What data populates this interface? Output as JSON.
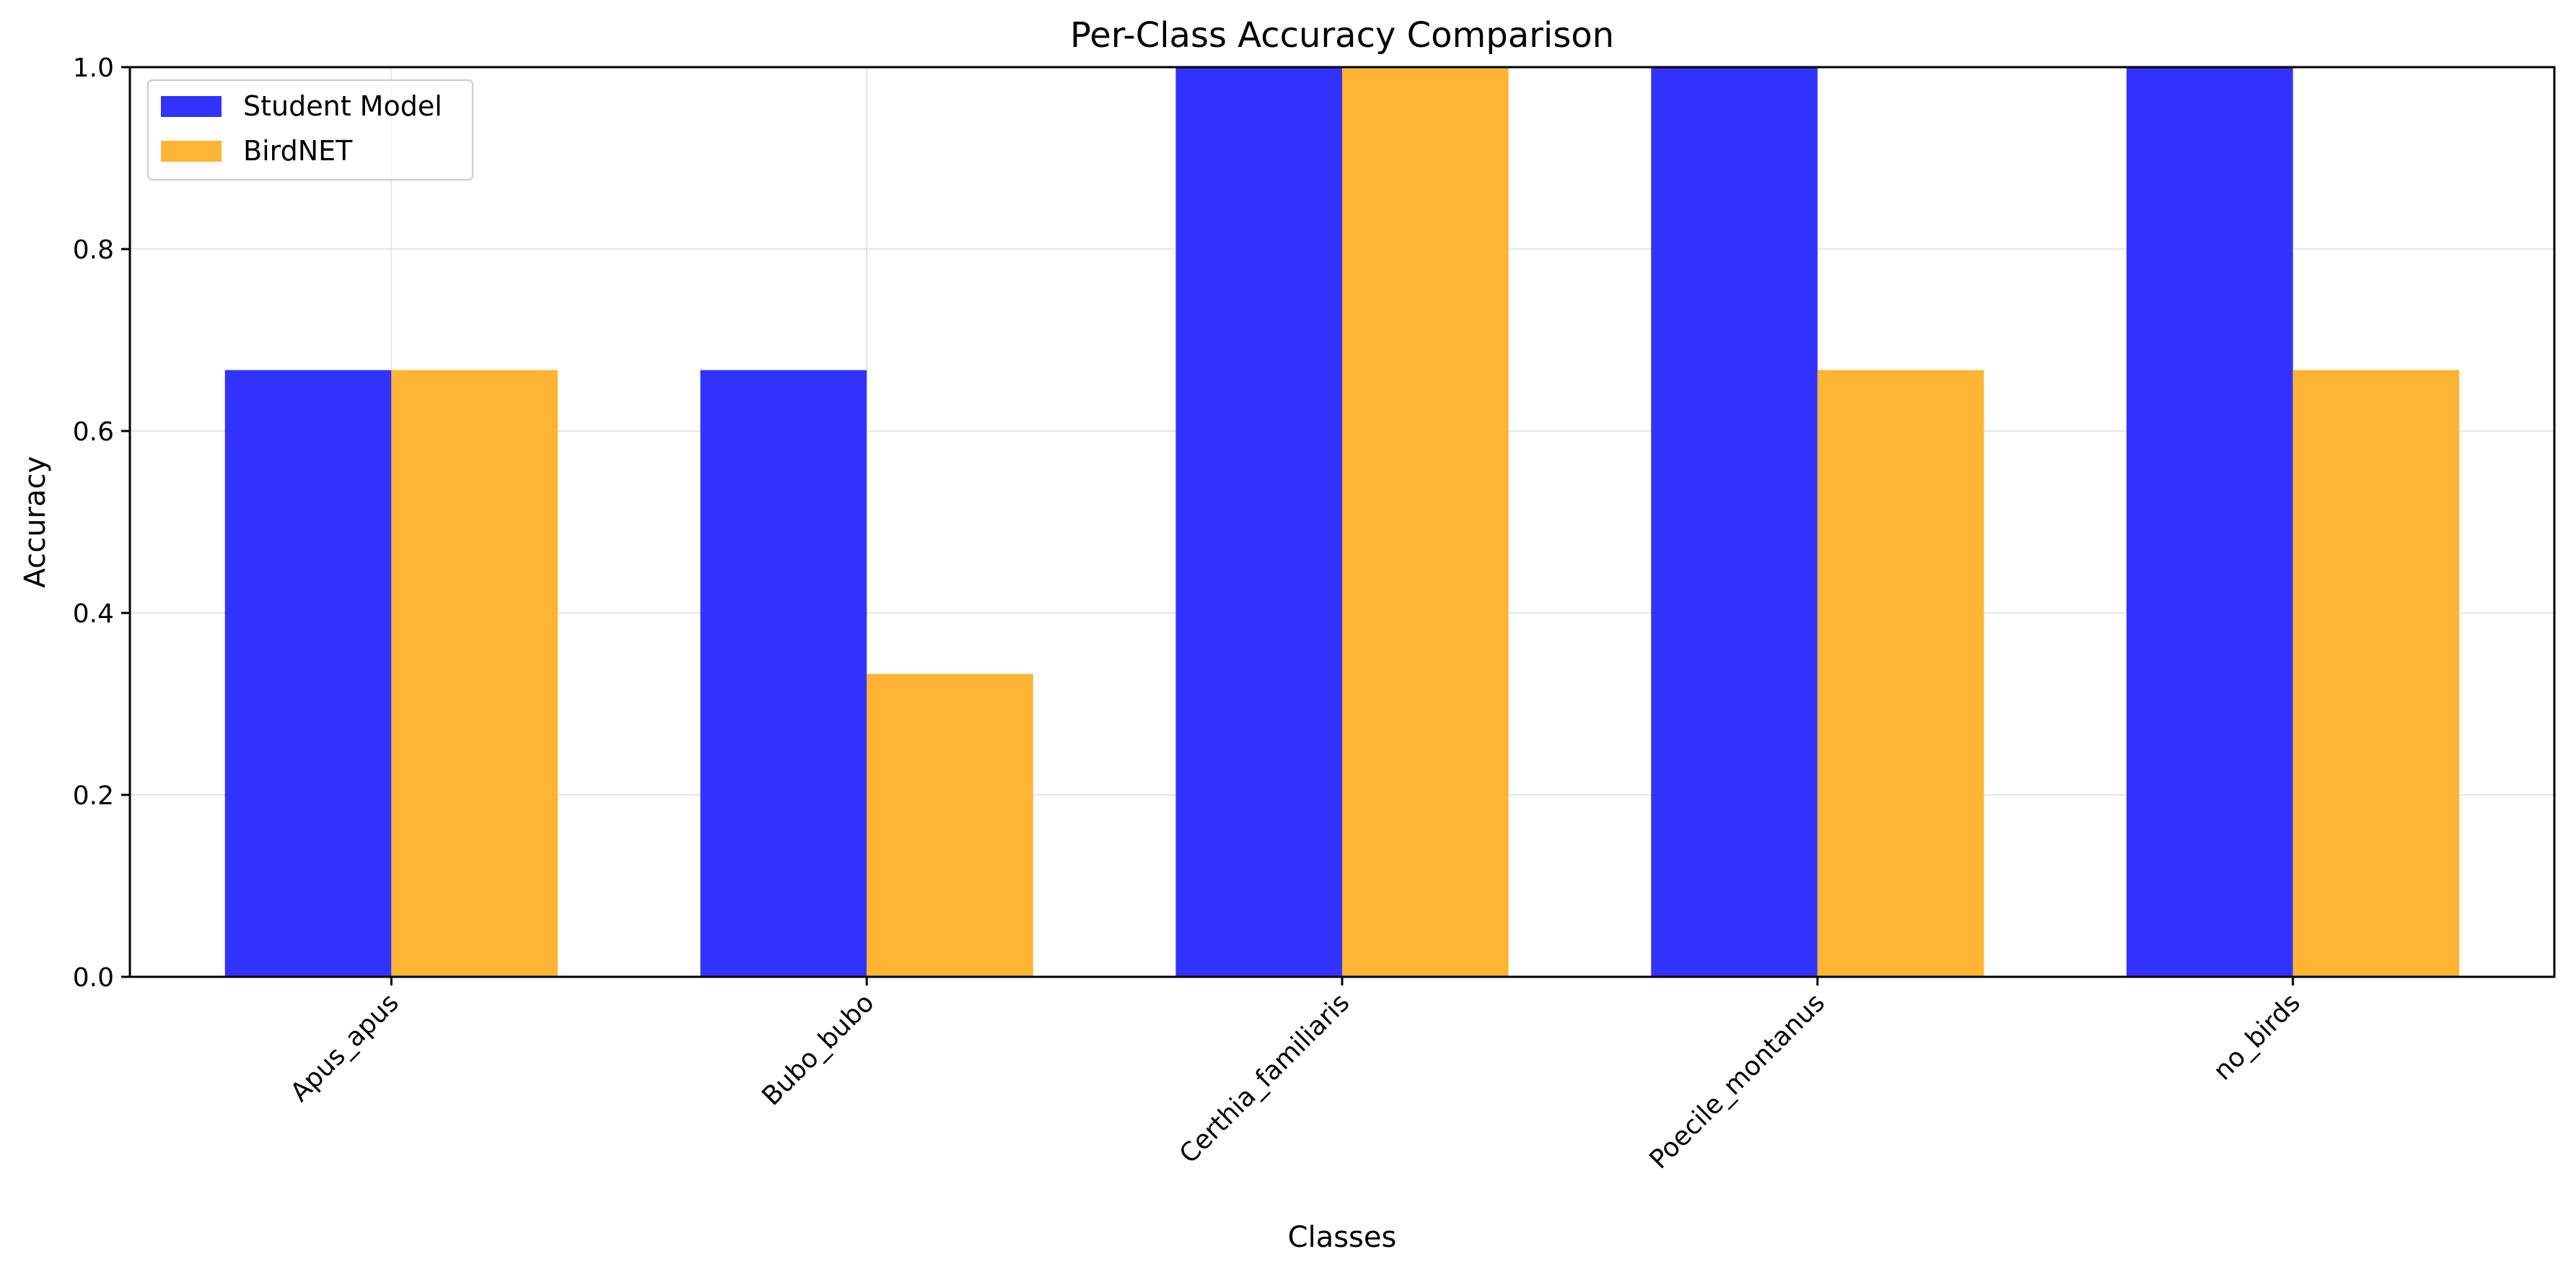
{
  "chart_data": {
    "type": "bar",
    "title": "Per-Class Accuracy Comparison",
    "xlabel": "Classes",
    "ylabel": "Accuracy",
    "categories": [
      "Apus_apus",
      "Bubo_bubo",
      "Certhia_familiaris",
      "Poecile_montanus",
      "no_birds"
    ],
    "series": [
      {
        "name": "Student Model",
        "color": "#3333ff",
        "values": [
          0.667,
          0.667,
          1.0,
          1.0,
          1.0
        ]
      },
      {
        "name": "BirdNET",
        "color": "#ffb433",
        "values": [
          0.667,
          0.333,
          1.0,
          0.667,
          0.667
        ]
      }
    ],
    "ylim": [
      0,
      1.0
    ],
    "yticks": [
      "0.0",
      "0.2",
      "0.4",
      "0.6",
      "0.8",
      "1.0"
    ],
    "grid": true,
    "legend_position": "top-left"
  }
}
